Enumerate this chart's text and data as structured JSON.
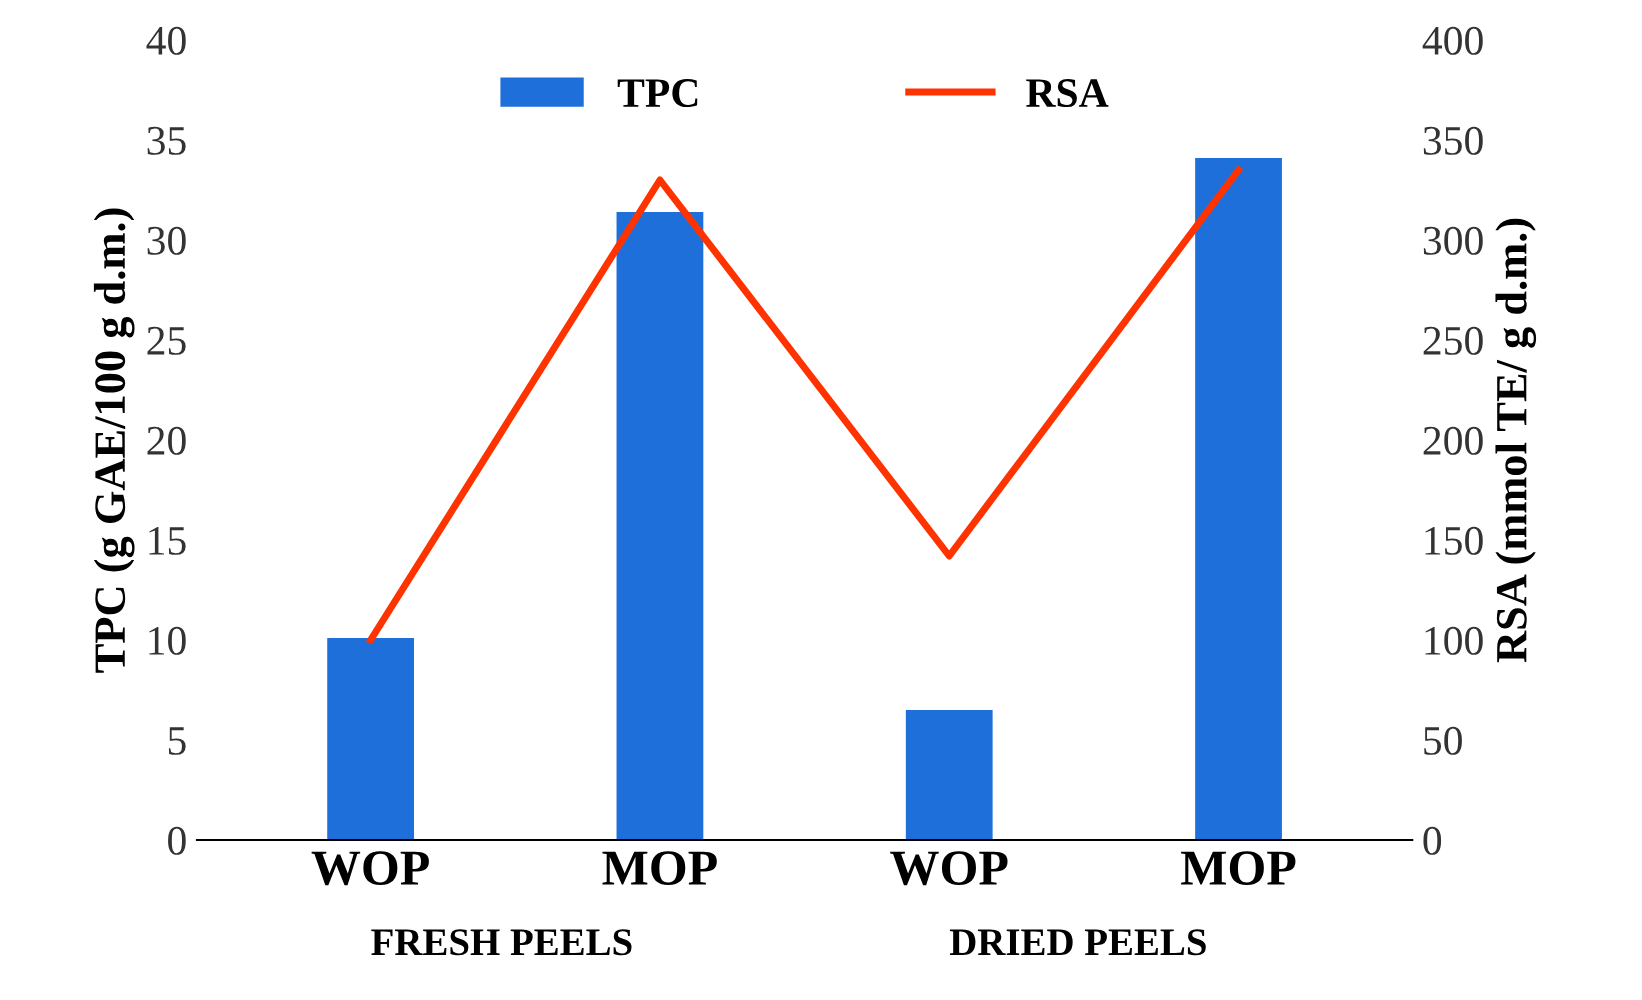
{
  "chart_data": {
    "type": "bar",
    "categories": [
      "WOP",
      "MOP",
      "WOP",
      "MOP"
    ],
    "series": [
      {
        "name": "TPC",
        "color": "#1f6fdb",
        "values": [
          10.1,
          31.4,
          6.5,
          34.1
        ]
      },
      {
        "name": "RSA",
        "type": "line",
        "axis": "y2",
        "color": "#ff3300",
        "values": [
          100,
          330,
          142,
          335
        ]
      }
    ],
    "ylabel": "TPC (g GAE/100 g d.m.)",
    "y2label": "RSA (mmol TE/ g d.m.)",
    "ylim": [
      0,
      40
    ],
    "yticks": [
      0,
      5,
      10,
      15,
      20,
      25,
      30,
      35,
      40
    ],
    "y2lim": [
      0,
      400
    ],
    "y2ticks": [
      0,
      50,
      100,
      150,
      200,
      250,
      300,
      350,
      400
    ],
    "annotations": [
      "FRESH PEELS",
      "DRIED PEELS"
    ],
    "legend": "top",
    "grid": false,
    "marker": "none"
  }
}
